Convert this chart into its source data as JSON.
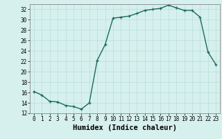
{
  "x": [
    0,
    1,
    2,
    3,
    4,
    5,
    6,
    7,
    8,
    9,
    10,
    11,
    12,
    13,
    14,
    15,
    16,
    17,
    18,
    19,
    20,
    21,
    22,
    23
  ],
  "y": [
    16.2,
    15.5,
    14.3,
    14.2,
    13.5,
    13.3,
    12.8,
    14.0,
    22.2,
    25.2,
    30.3,
    30.5,
    30.7,
    31.2,
    31.8,
    32.0,
    32.2,
    32.8,
    32.3,
    31.8,
    31.8,
    30.5,
    23.8,
    21.4
  ],
  "line_color": "#1a6b5a",
  "marker": "+",
  "marker_color": "#1a6b5a",
  "bg_color": "#d6f0ee",
  "grid_color": "#b8ddd8",
  "xlabel": "Humidex (Indice chaleur)",
  "xlim": [
    -0.5,
    23.5
  ],
  "ylim": [
    12,
    33
  ],
  "yticks": [
    12,
    14,
    16,
    18,
    20,
    22,
    24,
    26,
    28,
    30,
    32
  ],
  "xticks": [
    0,
    1,
    2,
    3,
    4,
    5,
    6,
    7,
    8,
    9,
    10,
    11,
    12,
    13,
    14,
    15,
    16,
    17,
    18,
    19,
    20,
    21,
    22,
    23
  ],
  "tick_label_fontsize": 5.5,
  "xlabel_fontsize": 7.5,
  "line_width": 1.0
}
